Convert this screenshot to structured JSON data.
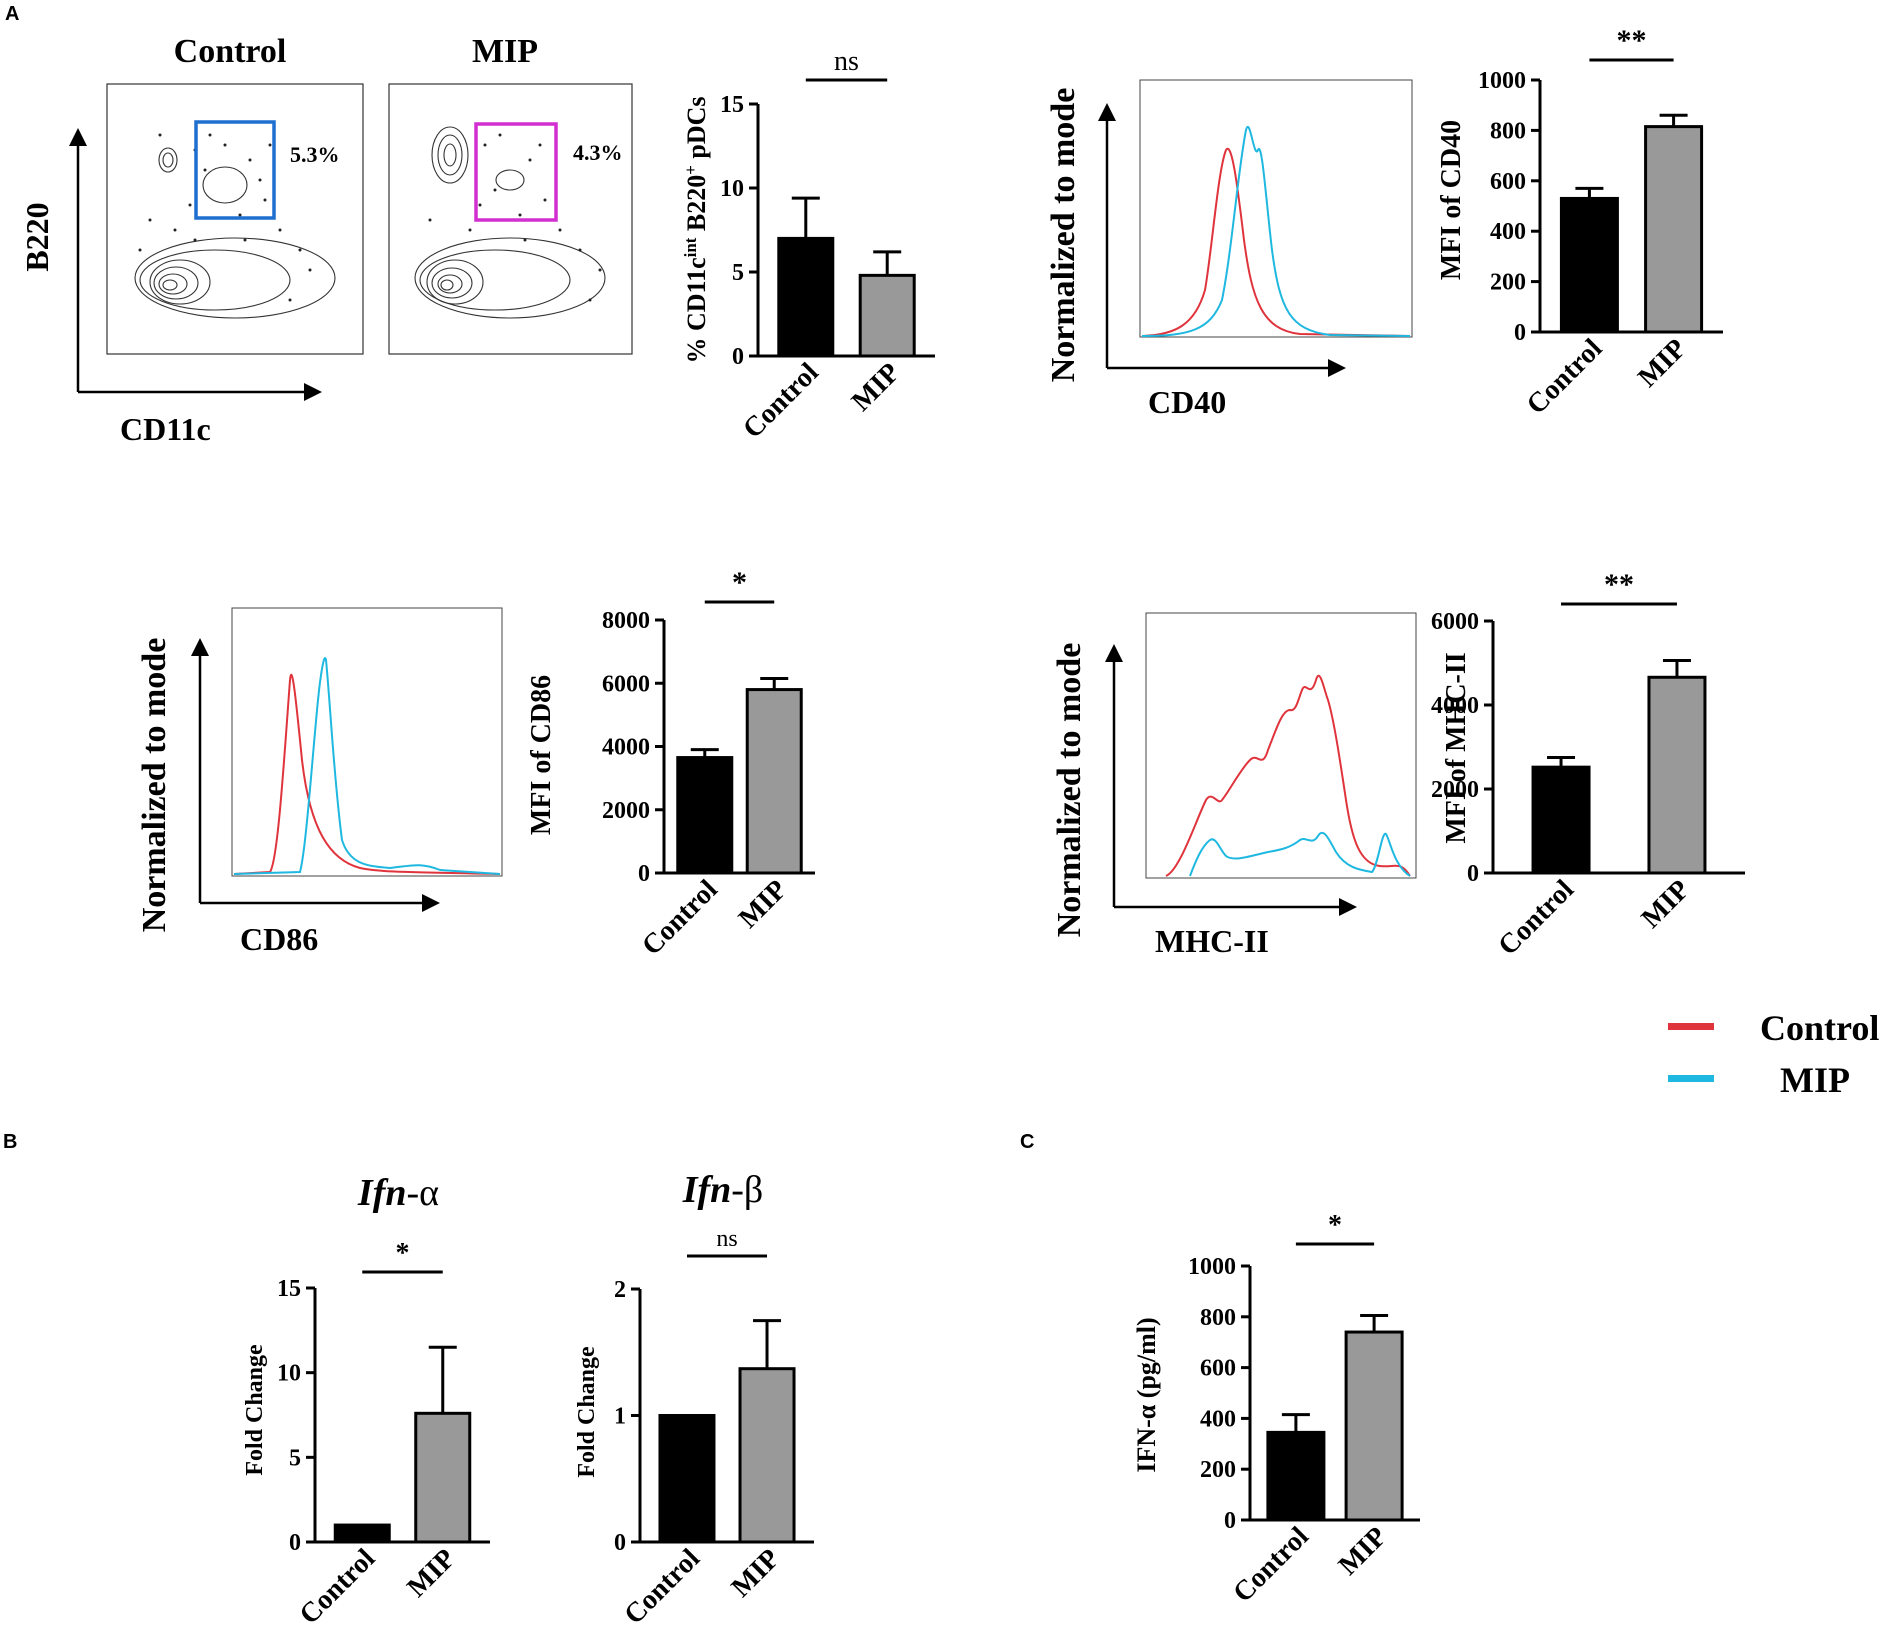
{
  "panel_labels": {
    "A": "A",
    "B": "B",
    "C": "C"
  },
  "flow": {
    "control_title": "Control",
    "mip_title": "MIP",
    "y_axis": "B220",
    "x_axis": "CD11c",
    "control_gate_pct": "5.3%",
    "mip_gate_pct": "4.3%",
    "control_gate_color": "#1f6fd1",
    "mip_gate_color": "#d12fd1"
  },
  "histograms": {
    "y_label": "Normalized to mode",
    "cd40_x": "CD40",
    "cd86_x": "CD86",
    "mhc_x": "MHC-II",
    "control_color": "#e0343c",
    "mip_color": "#1fb8e0"
  },
  "legend": {
    "control": "Control",
    "mip": "MIP"
  },
  "chart_data": [
    {
      "id": "pdc",
      "type": "bar",
      "categories": [
        "Control",
        "MIP"
      ],
      "values": [
        7.0,
        4.8
      ],
      "errors": [
        2.4,
        1.4
      ],
      "ylim": [
        0,
        15
      ],
      "yticks": [
        "0",
        "5",
        "10",
        "15"
      ],
      "ylabel_pre": "% CD11c",
      "ylabel_sup1": "int",
      "ylabel_mid": " B220",
      "ylabel_sup2": "+",
      "ylabel_post": " pDCs",
      "significance": "ns",
      "bar_colors": [
        "#000000",
        "#999999"
      ]
    },
    {
      "id": "cd40",
      "type": "bar",
      "categories": [
        "Control",
        "MIP"
      ],
      "values": [
        530,
        815
      ],
      "errors": [
        40,
        45
      ],
      "ylim": [
        0,
        1000
      ],
      "yticks": [
        "0",
        "200",
        "400",
        "600",
        "800",
        "1000"
      ],
      "ylabel": "MFI of CD40",
      "significance": "**",
      "bar_colors": [
        "#000000",
        "#999999"
      ]
    },
    {
      "id": "cd86",
      "type": "bar",
      "categories": [
        "Control",
        "MIP"
      ],
      "values": [
        3650,
        5800
      ],
      "errors": [
        250,
        350
      ],
      "ylim": [
        0,
        8000
      ],
      "yticks": [
        "0",
        "2000",
        "4000",
        "6000",
        "8000"
      ],
      "ylabel": "MFI of CD86",
      "significance": "*",
      "bar_colors": [
        "#000000",
        "#999999"
      ]
    },
    {
      "id": "mhc",
      "type": "bar",
      "categories": [
        "Control",
        "MIP"
      ],
      "values": [
        2520,
        4660
      ],
      "errors": [
        230,
        400
      ],
      "ylim": [
        0,
        6000
      ],
      "yticks": [
        "0",
        "2000",
        "4000",
        "6000"
      ],
      "ylabel": "MFI of MHC-II",
      "significance": "**",
      "bar_colors": [
        "#000000",
        "#999999"
      ]
    },
    {
      "id": "ifna",
      "type": "bar",
      "categories": [
        "Control",
        "MIP"
      ],
      "values": [
        1.0,
        7.6
      ],
      "errors": [
        0,
        3.9
      ],
      "ylim": [
        0,
        15
      ],
      "yticks": [
        "0",
        "5",
        "10",
        "15"
      ],
      "ylabel": "Fold Change",
      "title_italic": "Ifn",
      "title_rest": "-α",
      "significance": "*",
      "bar_colors": [
        "#000000",
        "#999999"
      ]
    },
    {
      "id": "ifnb",
      "type": "bar",
      "categories": [
        "Control",
        "MIP"
      ],
      "values": [
        1.0,
        1.37
      ],
      "errors": [
        0,
        0.38
      ],
      "ylim": [
        0,
        2
      ],
      "yticks": [
        "0",
        "1",
        "2"
      ],
      "ylabel": "Fold Change",
      "title_italic": "Ifn",
      "title_rest": "-β",
      "significance": "ns",
      "bar_colors": [
        "#000000",
        "#999999"
      ]
    },
    {
      "id": "ifnc",
      "type": "bar",
      "categories": [
        "Control",
        "MIP"
      ],
      "values": [
        345,
        740
      ],
      "errors": [
        70,
        65
      ],
      "ylim": [
        0,
        1000
      ],
      "yticks": [
        "0",
        "200",
        "400",
        "600",
        "800",
        "1000"
      ],
      "ylabel": "IFN-α  (pg/ml)",
      "significance": "*",
      "bar_colors": [
        "#000000",
        "#999999"
      ]
    }
  ]
}
